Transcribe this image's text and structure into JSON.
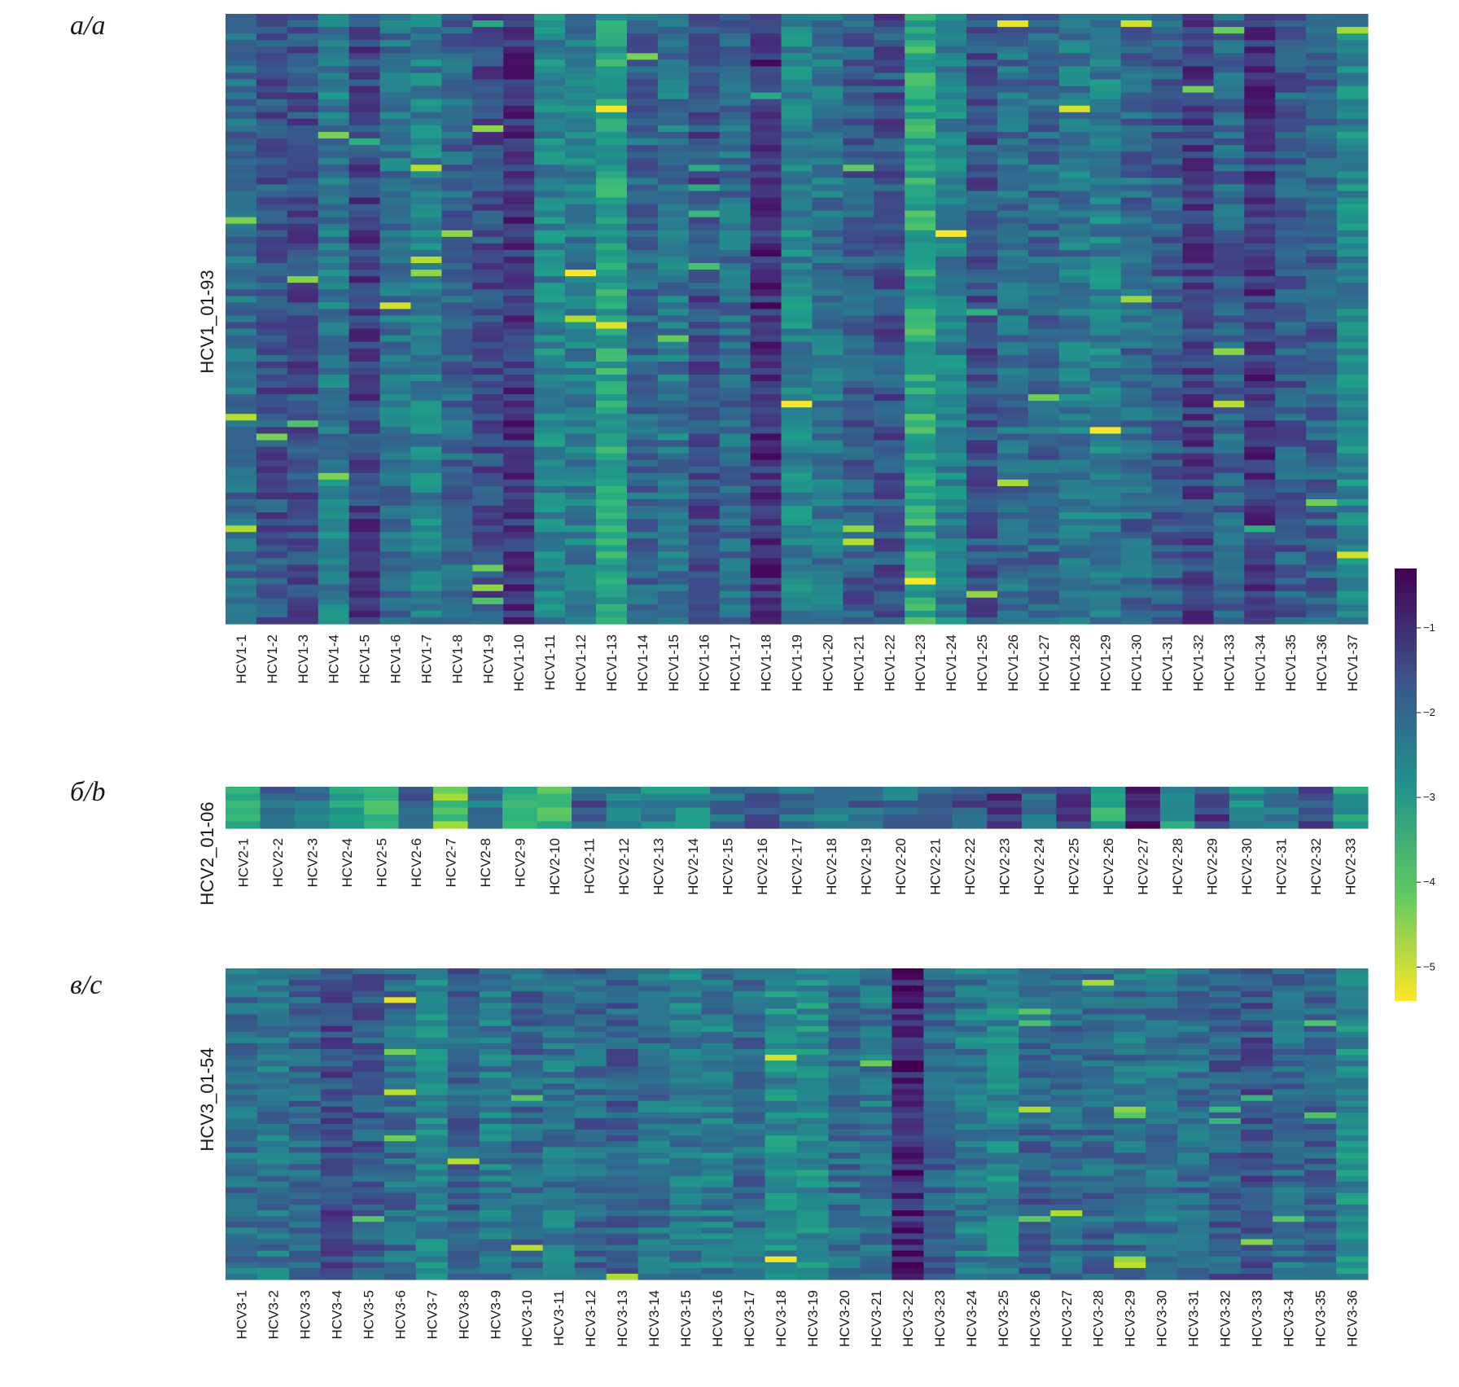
{
  "chart_data": [
    {
      "type": "heatmap",
      "panel_label": "a/a",
      "ylabel": "HCV1_01-93",
      "n_rows": 93,
      "categories": [
        "HCV1-1",
        "HCV1-2",
        "HCV1-3",
        "HCV1-4",
        "HCV1-5",
        "HCV1-6",
        "HCV1-7",
        "HCV1-8",
        "HCV1-9",
        "HCV1-10",
        "HCV1-11",
        "HCV1-12",
        "HCV1-13",
        "HCV1-14",
        "HCV1-15",
        "HCV1-16",
        "HCV1-17",
        "HCV1-18",
        "HCV1-19",
        "HCV1-20",
        "HCV1-21",
        "HCV1-22",
        "HCV1-23",
        "HCV1-24",
        "HCV1-25",
        "HCV1-26",
        "HCV1-27",
        "HCV1-28",
        "HCV1-29",
        "HCV1-30",
        "HCV1-31",
        "HCV1-32",
        "HCV1-33",
        "HCV1-34",
        "HCV1-35",
        "HCV1-36",
        "HCV1-37"
      ],
      "column_means": [
        -2.1,
        -1.6,
        -1.5,
        -2.4,
        -1.3,
        -2.2,
        -2.5,
        -2.0,
        -1.5,
        -1.1,
        -2.6,
        -2.4,
        -3.3,
        -2.0,
        -2.3,
        -1.5,
        -2.1,
        -1.0,
        -2.6,
        -2.3,
        -1.8,
        -1.6,
        -3.4,
        -2.5,
        -1.6,
        -2.1,
        -2.0,
        -2.3,
        -2.5,
        -2.0,
        -1.8,
        -1.3,
        -1.9,
        -1.1,
        -1.8,
        -1.8,
        -2.6
      ],
      "colormap": "viridis_r",
      "vlim": [
        -5.4,
        -0.3
      ]
    },
    {
      "type": "heatmap",
      "panel_label": "б/b",
      "ylabel": "HCV2_01-06",
      "n_rows": 6,
      "categories": [
        "HCV2-1",
        "HCV2-2",
        "HCV2-3",
        "HCV2-4",
        "HCV2-5",
        "HCV2-6",
        "HCV2-7",
        "HCV2-8",
        "HCV2-9",
        "HCV2-10",
        "HCV2-11",
        "HCV2-12",
        "HCV2-13",
        "HCV2-14",
        "HCV2-15",
        "HCV2-16",
        "HCV2-17",
        "HCV2-18",
        "HCV2-19",
        "HCV2-20",
        "HCV2-21",
        "HCV2-22",
        "HCV2-23",
        "HCV2-24",
        "HCV2-25",
        "HCV2-26",
        "HCV2-27",
        "HCV2-28",
        "HCV2-29",
        "HCV2-30",
        "HCV2-31",
        "HCV2-32",
        "HCV2-33"
      ],
      "column_means": [
        -3.4,
        -1.9,
        -2.4,
        -3.4,
        -4.0,
        -2.1,
        -4.2,
        -2.4,
        -3.5,
        -3.6,
        -1.7,
        -2.8,
        -2.6,
        -2.7,
        -2.3,
        -1.8,
        -2.3,
        -2.5,
        -2.0,
        -2.2,
        -1.7,
        -1.6,
        -1.3,
        -2.1,
        -1.0,
        -3.4,
        -0.6,
        -2.9,
        -1.3,
        -2.7,
        -2.3,
        -1.6,
        -3.2
      ],
      "colormap": "viridis_r",
      "vlim": [
        -5.4,
        -0.3
      ]
    },
    {
      "type": "heatmap",
      "panel_label": "в/c",
      "ylabel": "HCV3_01-54",
      "n_rows": 54,
      "categories": [
        "HCV3-1",
        "HCV3-2",
        "HCV3-3",
        "HCV3-4",
        "HCV3-5",
        "HCV3-6",
        "HCV3-7",
        "HCV3-8",
        "HCV3-9",
        "HCV3-10",
        "HCV3-11",
        "HCV3-12",
        "HCV3-13",
        "HCV3-14",
        "HCV3-15",
        "HCV3-16",
        "HCV3-17",
        "HCV3-18",
        "HCV3-19",
        "HCV3-20",
        "HCV3-21",
        "HCV3-22",
        "HCV3-23",
        "HCV3-24",
        "HCV3-25",
        "HCV3-26",
        "HCV3-27",
        "HCV3-28",
        "HCV3-29",
        "HCV3-30",
        "HCV3-31",
        "HCV3-32",
        "HCV3-33",
        "HCV3-34",
        "HCV3-35",
        "HCV3-36"
      ],
      "column_means": [
        -2.2,
        -2.3,
        -2.0,
        -1.5,
        -1.8,
        -2.1,
        -2.6,
        -1.9,
        -2.4,
        -2.0,
        -2.3,
        -2.0,
        -1.9,
        -2.2,
        -2.4,
        -2.4,
        -2.1,
        -2.7,
        -2.8,
        -2.1,
        -2.3,
        -0.8,
        -1.9,
        -2.4,
        -2.6,
        -1.9,
        -2.1,
        -2.0,
        -2.2,
        -2.3,
        -2.1,
        -1.8,
        -1.6,
        -2.1,
        -1.9,
        -2.7
      ],
      "colormap": "viridis_r",
      "vlim": [
        -5.4,
        -0.3
      ]
    }
  ],
  "colorbar": {
    "ticks": [
      -1,
      -2,
      -3,
      -4,
      -5
    ],
    "tick_labels": [
      "−1",
      "−2",
      "−3",
      "−4",
      "−5"
    ],
    "colormap": "viridis_r",
    "vlim": [
      -5.4,
      -0.3
    ]
  }
}
